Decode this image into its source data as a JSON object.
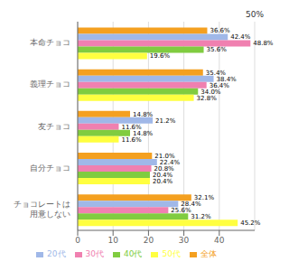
{
  "chart_data": {
    "type": "bar",
    "orientation": "horizontal",
    "categories": [
      "本命チョコ",
      "義理チョコ",
      "友チョコ",
      "自分チョコ",
      "チョコレートは\n用意しない"
    ],
    "series": [
      {
        "name": "全体",
        "color": "#F4A020",
        "values": [
          36.6,
          35.4,
          14.8,
          21.0,
          32.1
        ],
        "value_labels": [
          "36.6%",
          "35.4%",
          "14.8%",
          "21.0%",
          "32.1%"
        ]
      },
      {
        "name": "20代",
        "color": "#A0B8E8",
        "values": [
          42.4,
          38.4,
          21.2,
          22.4,
          28.4
        ],
        "value_labels": [
          "42.4%",
          "38.4%",
          "21.2%",
          "22.4%",
          "28.4%"
        ]
      },
      {
        "name": "30代",
        "color": "#F080B0",
        "values": [
          48.8,
          36.4,
          11.6,
          20.8,
          25.6
        ],
        "value_labels": [
          "48.8%",
          "36.4%",
          "11.6%",
          "20.8%",
          "25.6%"
        ]
      },
      {
        "name": "40代",
        "color": "#80CC40",
        "values": [
          35.6,
          34.0,
          14.8,
          20.4,
          31.2
        ],
        "value_labels": [
          "35.6%",
          "34.0%",
          "14.8%",
          "20.4%",
          "31.2%"
        ]
      },
      {
        "name": "50代",
        "color": "#FFFF40",
        "values": [
          19.6,
          32.8,
          11.6,
          20.4,
          45.2
        ],
        "value_labels": [
          "19.6%",
          "32.8%",
          "11.6%",
          "20.4%",
          "45.2%"
        ]
      }
    ],
    "xlim": [
      0,
      50
    ],
    "xticks": [
      0,
      10,
      20,
      30,
      40
    ],
    "annotations": [
      {
        "text": "50%",
        "x": 50
      }
    ],
    "grid": true,
    "legend": "bottom",
    "data_labels": true
  }
}
